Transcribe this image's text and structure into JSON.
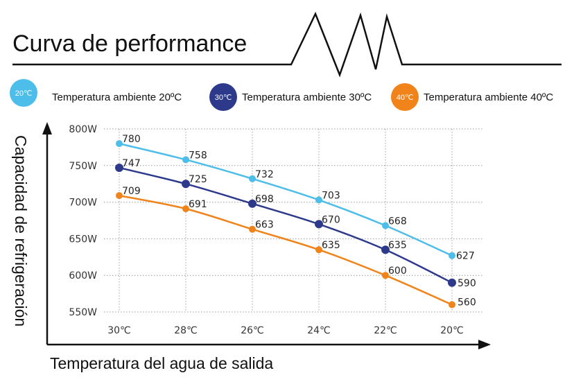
{
  "title": "Curva de performance",
  "legend": [
    {
      "badge": "20℃",
      "label": "Temperatura ambiente 20ºC",
      "color": "#4dbde9"
    },
    {
      "badge": "30℃",
      "label": "Temperatura ambiente 30ºC",
      "color": "#2d3a8c"
    },
    {
      "badge": "40℃",
      "label": "Temperatura ambiente 40ºC",
      "color": "#f0841a"
    }
  ],
  "chart_data": {
    "type": "line",
    "title": "Curva de performance",
    "xlabel": "Temperatura del agua de salida",
    "ylabel": "Capacidad de refrigeración",
    "categories": [
      "30℃",
      "28℃",
      "26℃",
      "24℃",
      "22℃",
      "20℃"
    ],
    "y_tick_labels": [
      "800W",
      "750W",
      "700W",
      "650W",
      "600W",
      "550W"
    ],
    "y_ticks": [
      800,
      750,
      700,
      650,
      600,
      550
    ],
    "ylim": [
      550,
      800
    ],
    "grid": true,
    "legend_position": "top",
    "series": [
      {
        "name": "Temperatura ambiente 20ºC",
        "color": "#4dbde9",
        "values": [
          780,
          758,
          732,
          703,
          668,
          627
        ]
      },
      {
        "name": "Temperatura ambiente 30ºC",
        "color": "#2d3a8c",
        "values": [
          747,
          725,
          698,
          670,
          635,
          590
        ]
      },
      {
        "name": "Temperatura ambiente 40ºC",
        "color": "#f0841a",
        "values": [
          709,
          691,
          663,
          635,
          600,
          560
        ]
      }
    ]
  }
}
